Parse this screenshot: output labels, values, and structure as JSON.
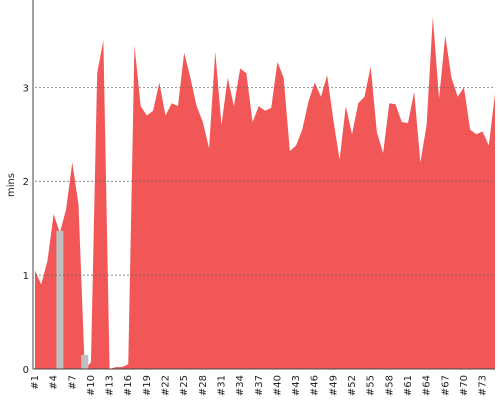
{
  "chart_data": {
    "type": "area",
    "y_label": "mins",
    "categories": [
      "#1",
      null,
      null,
      "#4",
      null,
      null,
      "#7",
      null,
      null,
      "#10",
      null,
      null,
      "#13",
      null,
      null,
      "#16",
      null,
      null,
      "#19",
      null,
      null,
      "#22",
      null,
      null,
      "#25",
      null,
      null,
      "#28",
      null,
      null,
      "#31",
      null,
      null,
      "#34",
      null,
      null,
      "#37",
      null,
      null,
      "#40",
      null,
      null,
      "#43",
      null,
      null,
      "#46",
      null,
      null,
      "#49",
      null,
      null,
      "#52",
      null,
      null,
      "#55",
      null,
      null,
      "#58",
      null,
      null,
      "#61",
      null,
      null,
      "#64",
      null,
      null,
      "#67",
      null,
      null,
      "#70",
      null,
      null,
      "#73",
      null,
      null
    ],
    "series": [
      {
        "color": "#f25757",
        "values": [
          1.05,
          0.9,
          1.15,
          1.65,
          1.45,
          1.7,
          2.2,
          1.75,
          0,
          0.07,
          3.15,
          3.5,
          0,
          0.02,
          0.02,
          0.05,
          3.45,
          2.8,
          2.7,
          2.75,
          3.05,
          2.7,
          2.83,
          2.8,
          3.37,
          3.1,
          2.8,
          2.63,
          2.35,
          3.38,
          2.6,
          3.1,
          2.8,
          3.2,
          3.15,
          2.63,
          2.8,
          2.75,
          2.78,
          3.27,
          3.1,
          2.32,
          2.38,
          2.55,
          2.85,
          3.05,
          2.9,
          3.13,
          2.65,
          2.23,
          2.8,
          2.5,
          2.83,
          2.9,
          3.22,
          2.52,
          2.3,
          2.83,
          2.82,
          2.63,
          2.62,
          2.95,
          2.2,
          2.6,
          3.75,
          2.88,
          3.55,
          3.1,
          2.9,
          3.0,
          2.55,
          2.5,
          2.53,
          2.38,
          2.93
        ]
      },
      {
        "color": "#c0c0c0",
        "style": "bar",
        "values": [
          null,
          null,
          null,
          null,
          1.47,
          null,
          null,
          null,
          0.15,
          null,
          null,
          null,
          null,
          null,
          null,
          null,
          null,
          null,
          null,
          null,
          null,
          null,
          null,
          null,
          null,
          null,
          null,
          null,
          null,
          null,
          null,
          null,
          null,
          null,
          null,
          null,
          null,
          null,
          null,
          null,
          null,
          null,
          null,
          null,
          null,
          null,
          null,
          null,
          null,
          null,
          null,
          null,
          null,
          null,
          null,
          null,
          null,
          null,
          null,
          null,
          null,
          null,
          null,
          null,
          null,
          null,
          null,
          null,
          null,
          null,
          null,
          null,
          null,
          null,
          null
        ]
      }
    ],
    "ylim": [
      0,
      3.93
    ],
    "yticks": [
      0,
      1,
      2,
      3
    ],
    "grid": true
  }
}
